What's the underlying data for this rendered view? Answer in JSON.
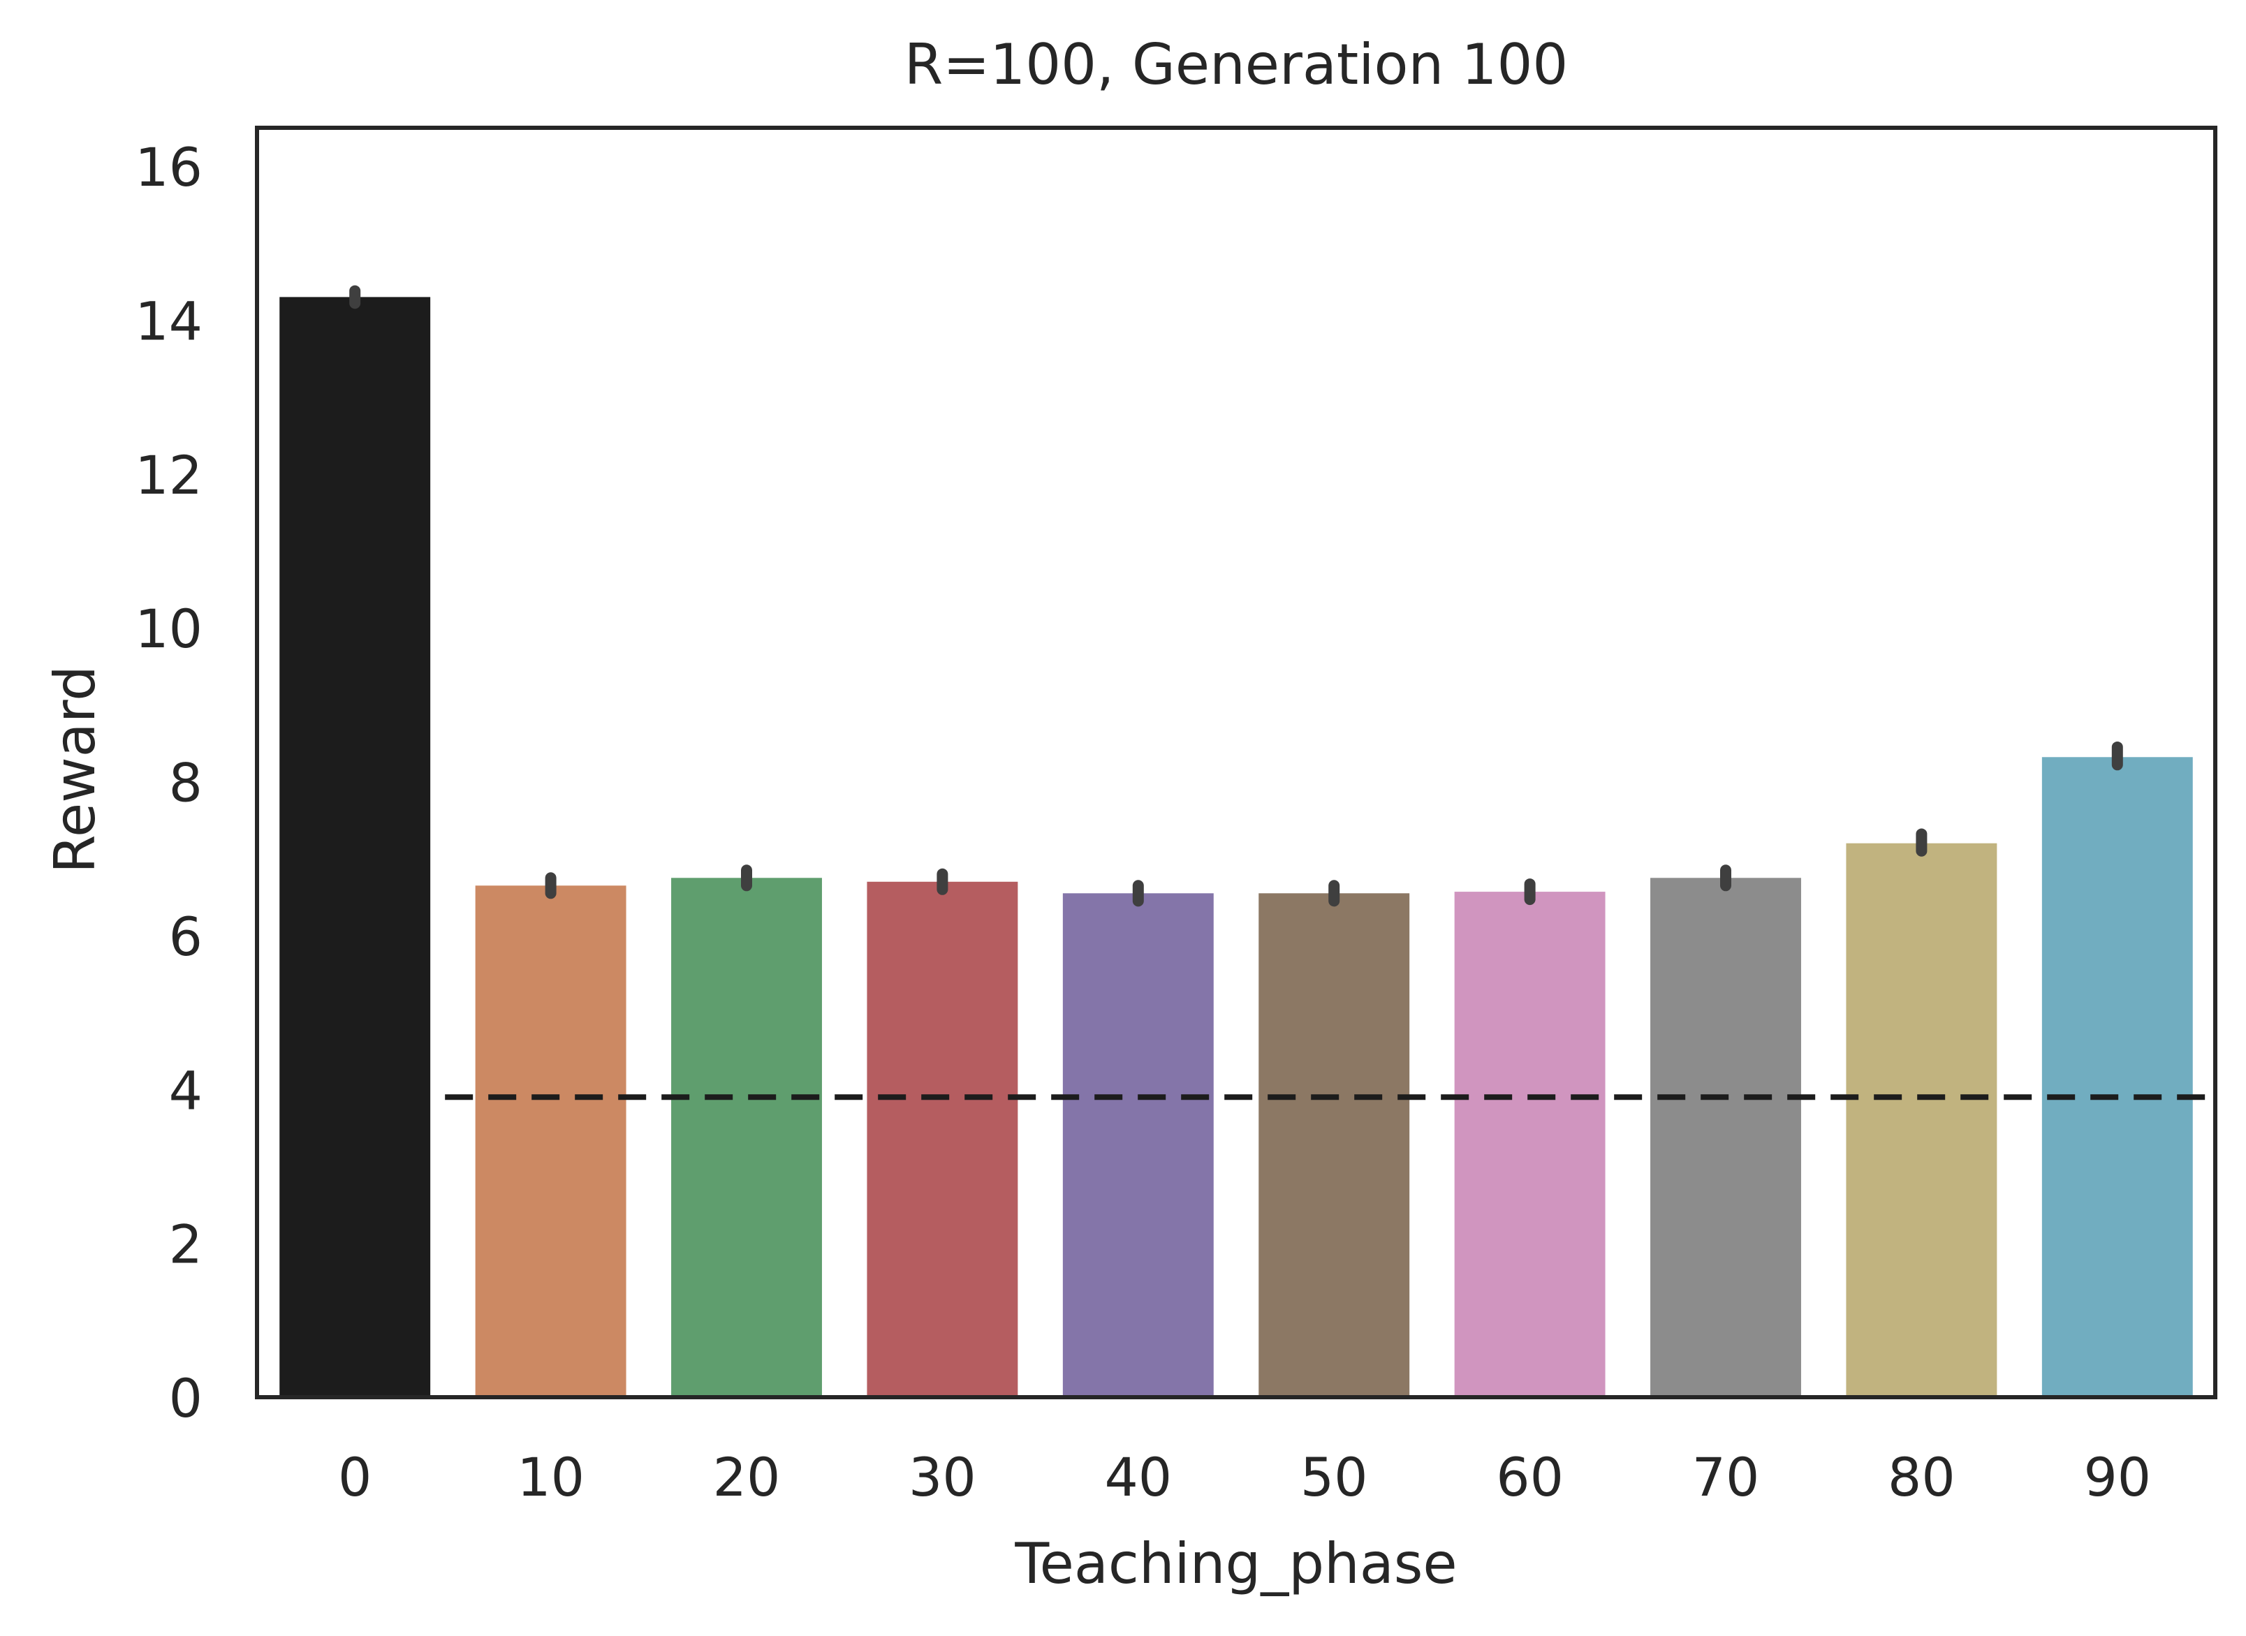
{
  "chart_data": {
    "type": "bar",
    "title": "R=100, Generation 100",
    "xlabel": "Teaching_phase",
    "ylabel": "Reward",
    "categories": [
      "0",
      "10",
      "20",
      "30",
      "40",
      "50",
      "60",
      "70",
      "80",
      "90"
    ],
    "values": [
      14.3,
      6.65,
      6.75,
      6.7,
      6.55,
      6.55,
      6.57,
      6.75,
      7.2,
      8.32
    ],
    "error_low": [
      14.22,
      6.55,
      6.65,
      6.6,
      6.45,
      6.45,
      6.47,
      6.65,
      7.1,
      8.22
    ],
    "error_high": [
      14.38,
      6.75,
      6.85,
      6.8,
      6.65,
      6.65,
      6.67,
      6.85,
      7.32,
      8.45
    ],
    "colors": [
      "#1c1c1c",
      "#cc8963",
      "#5f9e6e",
      "#b55d60",
      "#8475a9",
      "#8c7864",
      "#d095bf",
      "#8c8c8c",
      "#c1b37f",
      "#71adc0"
    ],
    "ylim": [
      0,
      16.5
    ],
    "yticks": [
      0,
      2,
      4,
      6,
      8,
      10,
      12,
      14,
      16
    ],
    "reference_line": {
      "y": 3.9,
      "style": "dashed",
      "x_start_category_offset": 0.5,
      "color": "#1c1c1c"
    },
    "error_bar_color": "#3f3f3f",
    "grid": false,
    "legend": "none"
  }
}
